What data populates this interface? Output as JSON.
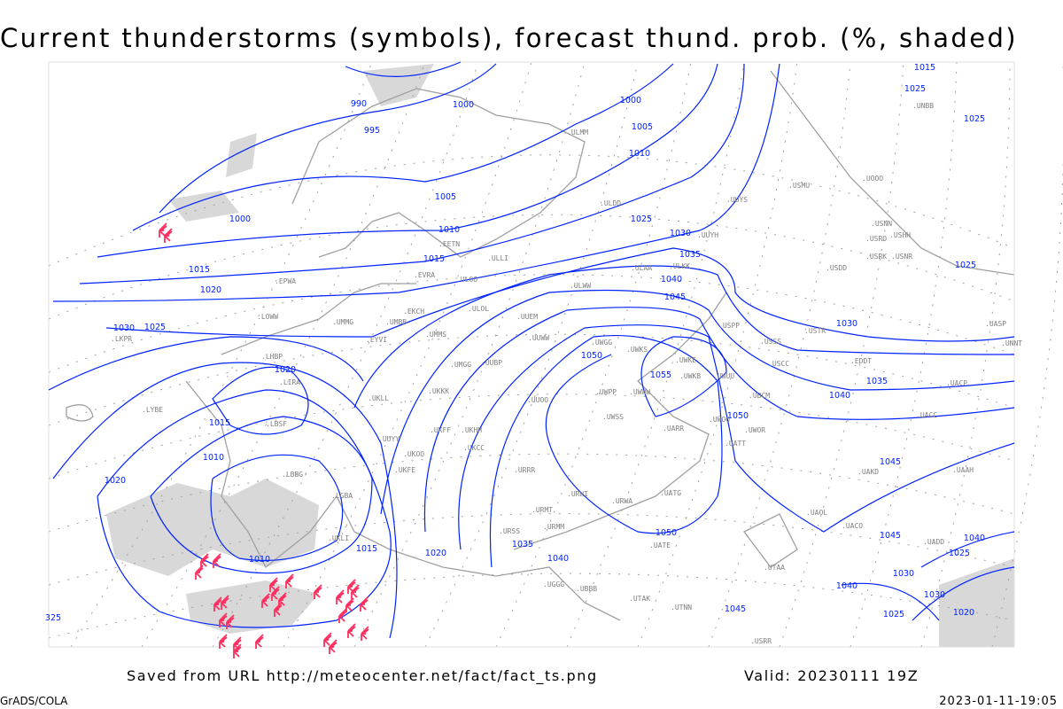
{
  "title": "Current thunderstorms (symbols), forecast thund. prob. (%, shaded)",
  "footer": {
    "saved_from": "Saved from URL http://meteocenter.net/fact/fact_ts.png",
    "valid": "Valid: 20230111 19Z",
    "software": "GrADS/COLA",
    "timestamp": "2023-01-11-19:05"
  },
  "colors": {
    "isobar": "#0022ff",
    "coastline": "#a0a0a0",
    "grid": "#a0a0a0",
    "shading": "#d8d8d8",
    "storm_symbol": "#ff2f5f",
    "station_label": "#808080"
  },
  "isobar_labels": [
    "990",
    "995",
    "1000",
    "1000",
    "1000",
    "1005",
    "1005",
    "1010",
    "1010",
    "1015",
    "1015",
    "1020",
    "1020",
    "1025",
    "1030",
    "1035",
    "1040",
    "1045",
    "1050",
    "1055",
    "1050",
    "1025",
    "1030",
    "1035",
    "1040",
    "1045",
    "1045",
    "1015",
    "1010",
    "1020",
    "1015",
    "1020",
    "1010",
    "1030",
    "1040",
    "1035",
    "1030",
    "1025",
    "1050",
    "1045",
    "1040",
    "1040",
    "1030",
    "1025",
    "1020",
    "1025",
    "1025",
    "1015",
    "1025",
    "325"
  ],
  "stations": [
    "ULMM",
    "ULOL",
    "UUYS",
    "UUYH",
    "ULLI",
    "EETN",
    "EVRA",
    "ULOO",
    "UKLL",
    "ULWW",
    "UUEM",
    "UUWW",
    "UMMS",
    "UMGG",
    "UUBP",
    "UKKK",
    "UUOO",
    "UKHH",
    "UKCC",
    "UKOO",
    "UKFF",
    "URRR",
    "URWI",
    "URWA",
    "UATG",
    "UATE",
    "UARR",
    "UWSS",
    "UWPP",
    "UWWW",
    "UWKE",
    "UWKB",
    "UWUU",
    "UWKS",
    "UWGG",
    "USPP",
    "USSS",
    "USCC",
    "UBCM",
    "UWOO",
    "UWOR",
    "UATT",
    "USTR",
    "UACC",
    "UAAH",
    "UAKD",
    "UAOL",
    "UACO",
    "UADD",
    "URMM",
    "URSS",
    "URMT",
    "UGGG",
    "UBBB",
    "UTAK",
    "UTNN",
    "UTAA",
    "USRR",
    "USRK",
    "USRO",
    "USNN",
    "USNR",
    "USHH",
    "USDD",
    "USMU",
    "UOOO",
    "UNBB",
    "UNNT",
    "UASP",
    "UACP",
    "EDDT",
    "EPWA",
    "UMMG",
    "UMBB",
    "EYVI",
    "EKCH",
    "LKPR",
    "LOWW",
    "LHBP",
    "LIRA",
    "LYBE",
    "LBSF",
    "LBBG",
    "LGBA",
    "UKLI",
    "UKFE",
    "UUYY",
    "ULKK",
    "ULAA",
    "ULDD"
  ],
  "map": {
    "shaded_threshold_note": "",
    "thunderstorm_symbol": "thunderstorm-icon"
  }
}
